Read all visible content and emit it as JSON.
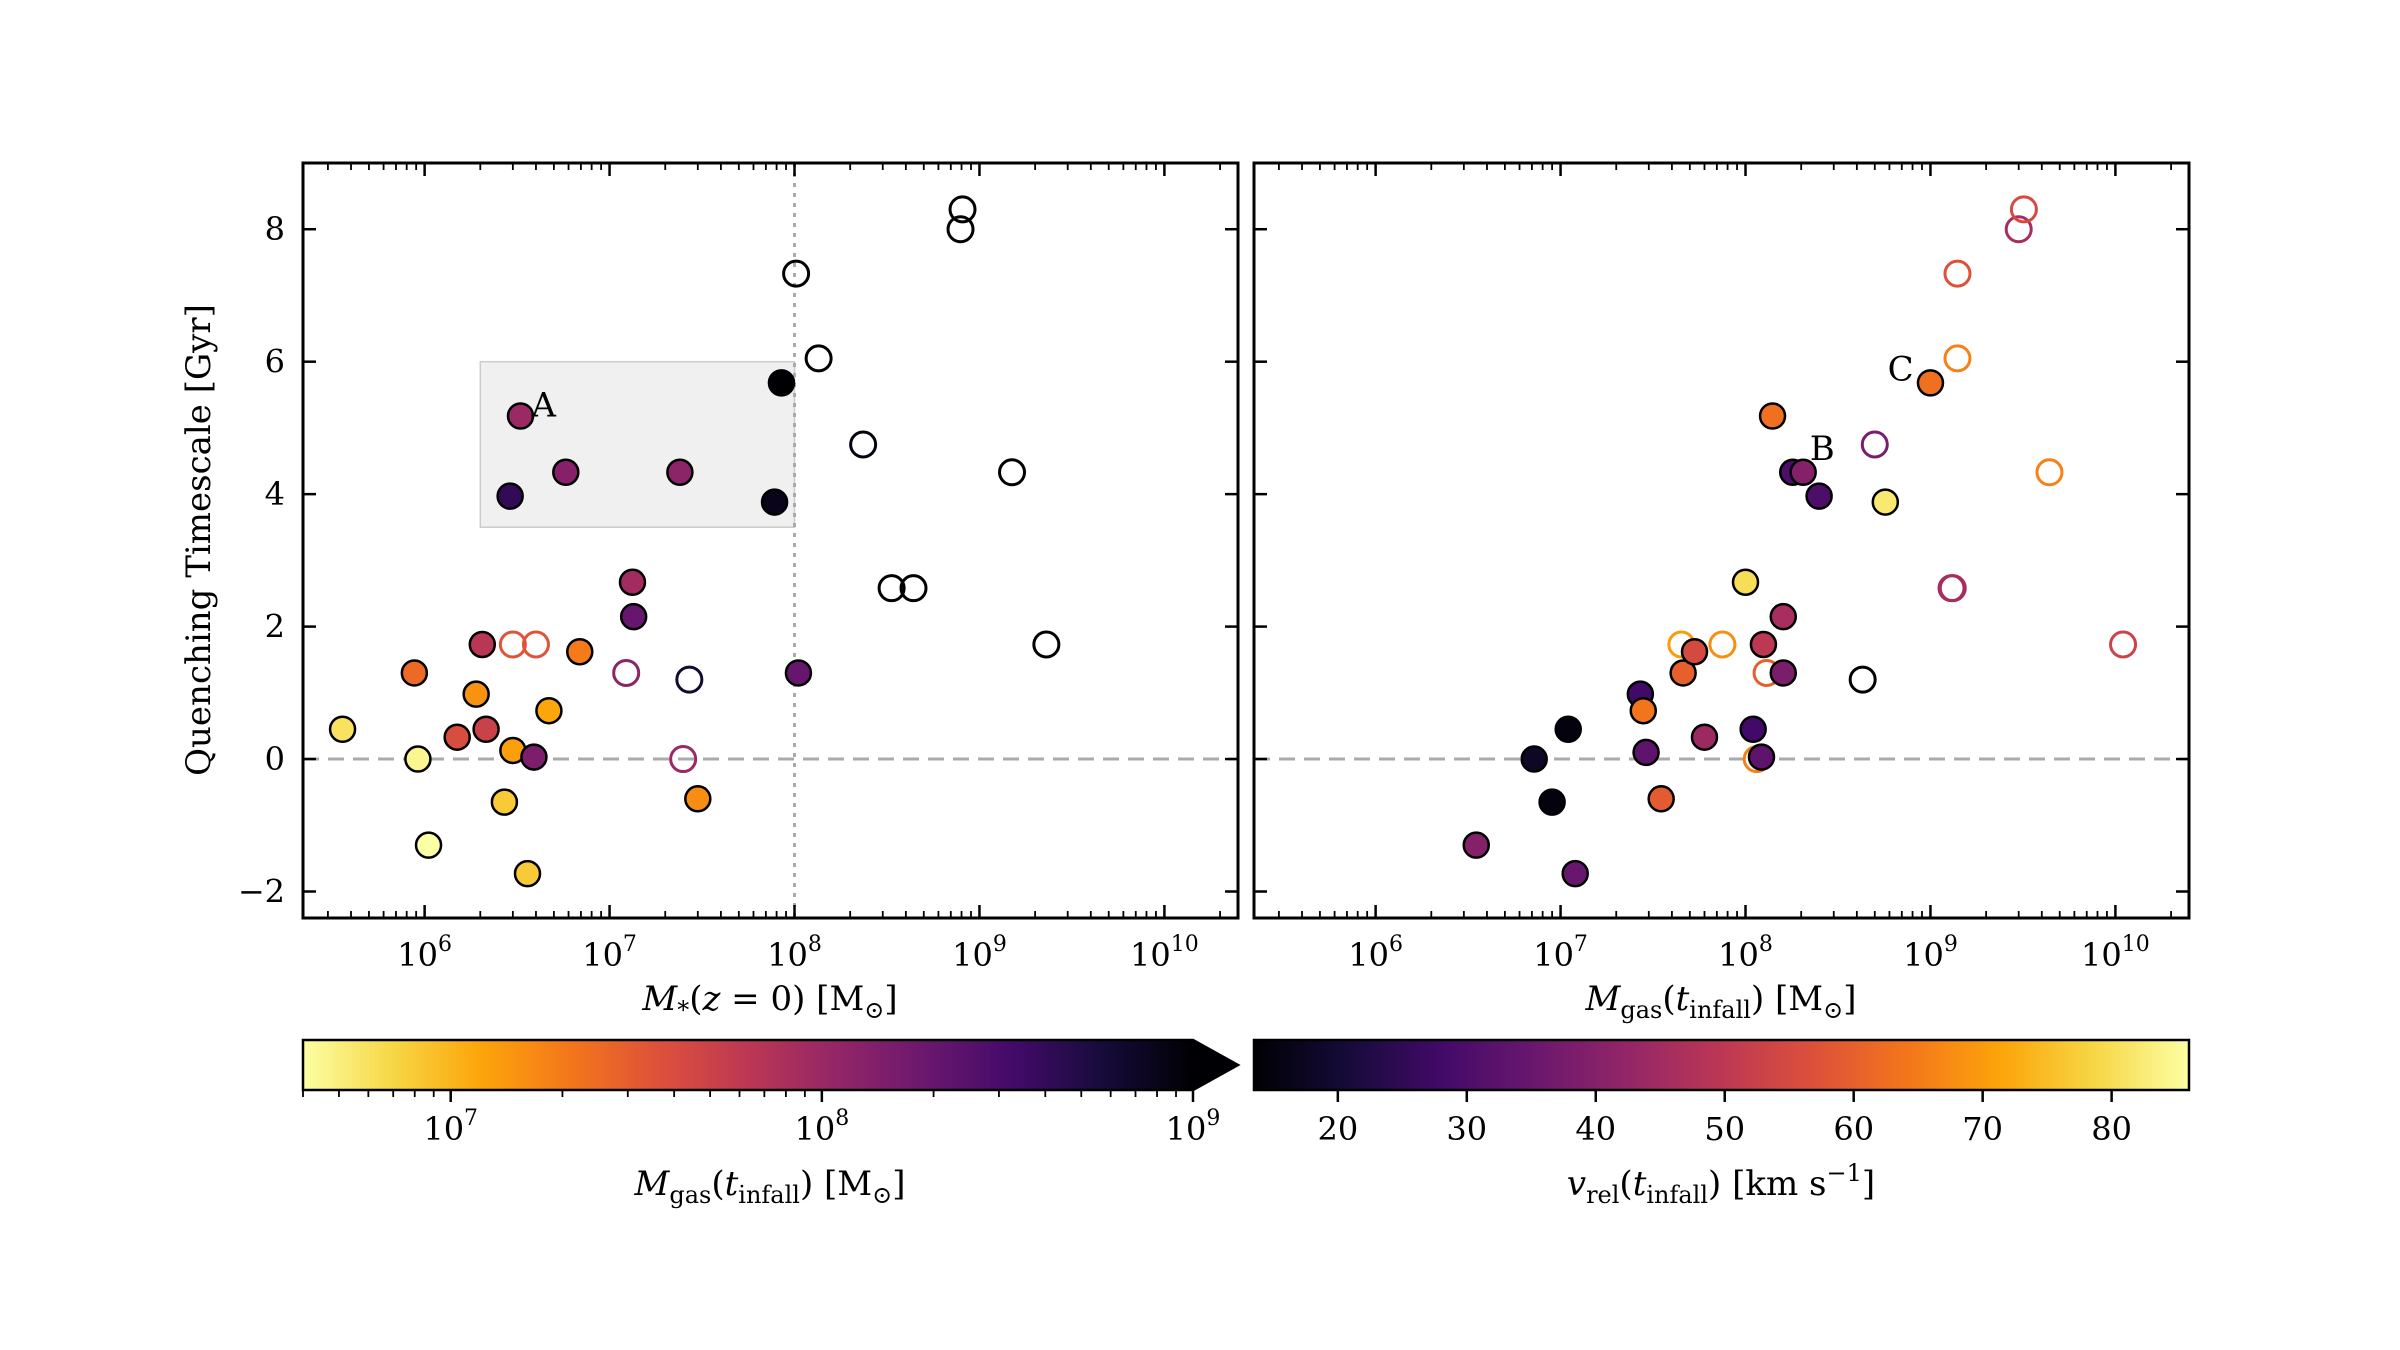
{
  "chart_data": [
    {
      "type": "scatter",
      "xlabel": "M*(z = 0) [M⊙]",
      "ylabel": "Quenching Timescale [Gyr]",
      "xscale": "log",
      "xlim": [
        220000.0,
        25000000000.0
      ],
      "ylim": [
        -2.4,
        9.0
      ],
      "x_ticks": [
        1000000.0,
        10000000.0,
        100000000.0,
        1000000000.0,
        10000000000.0
      ],
      "x_tick_labels": [
        "10^6",
        "10^7",
        "10^8",
        "10^9",
        "10^10"
      ],
      "y_ticks": [
        -2,
        0,
        2,
        4,
        6,
        8
      ],
      "y_tick_labels": [
        "−2",
        "0",
        "2",
        "4",
        "6",
        "8"
      ],
      "reference_lines": [
        {
          "orientation": "horizontal",
          "value": 0,
          "style": "dashed",
          "color": "#aaaaaa"
        },
        {
          "orientation": "vertical",
          "value": 100000000.0,
          "style": "dotted",
          "color": "#aaaaaa"
        }
      ],
      "shaded_region": {
        "x": [
          2000000.0,
          100000000.0
        ],
        "y": [
          3.5,
          6.0
        ],
        "color": "#f0f0f0"
      },
      "annotations": [
        {
          "text": "A",
          "x": 4400000.0,
          "y": 5.35
        }
      ],
      "color_by": "Mgas(tinfall)",
      "points": [
        {
          "x": 360000.0,
          "y": 0.45,
          "c": 6000000.0,
          "filled": true
        },
        {
          "x": 880000.0,
          "y": 1.3,
          "c": 25000000.0,
          "filled": true
        },
        {
          "x": 920000.0,
          "y": 0.0,
          "c": 4500000.0,
          "filled": true
        },
        {
          "x": 1050000.0,
          "y": -1.3,
          "c": 3800000.0,
          "filled": true
        },
        {
          "x": 1500000.0,
          "y": 0.33,
          "c": 40000000.0,
          "filled": true
        },
        {
          "x": 1900000.0,
          "y": 0.98,
          "c": 15000000.0,
          "filled": true
        },
        {
          "x": 2050000.0,
          "y": 1.73,
          "c": 65000000.0,
          "filled": true
        },
        {
          "x": 2150000.0,
          "y": 0.45,
          "c": 50000000.0,
          "filled": true
        },
        {
          "x": 2700000.0,
          "y": -0.65,
          "c": 8000000.0,
          "filled": true
        },
        {
          "x": 2900000.0,
          "y": 3.97,
          "c": 400000000.0,
          "filled": true
        },
        {
          "x": 3000000.0,
          "y": 0.13,
          "c": 13000000.0,
          "filled": true
        },
        {
          "x": 3000000.0,
          "y": 1.73,
          "c": 35000000.0,
          "filled": false
        },
        {
          "x": 3300000.0,
          "y": 5.18,
          "c": 100000000.0,
          "filled": true
        },
        {
          "x": 3600000.0,
          "y": -1.73,
          "c": 8000000.0,
          "filled": true
        },
        {
          "x": 3900000.0,
          "y": 0.03,
          "c": 150000000.0,
          "filled": true
        },
        {
          "x": 4000000.0,
          "y": 1.73,
          "c": 35000000.0,
          "filled": false
        },
        {
          "x": 4700000.0,
          "y": 0.73,
          "c": 12000000.0,
          "filled": true
        },
        {
          "x": 5800000.0,
          "y": 4.33,
          "c": 130000000.0,
          "filled": true
        },
        {
          "x": 6900000.0,
          "y": 1.62,
          "c": 20000000.0,
          "filled": true
        },
        {
          "x": 12300000.0,
          "y": 1.3,
          "c": 120000000.0,
          "filled": false
        },
        {
          "x": 13300000.0,
          "y": 2.67,
          "c": 90000000.0,
          "filled": true
        },
        {
          "x": 13500000.0,
          "y": 2.15,
          "c": 200000000.0,
          "filled": true
        },
        {
          "x": 24000000.0,
          "y": 4.33,
          "c": 120000000.0,
          "filled": true
        },
        {
          "x": 25000000.0,
          "y": 0.0,
          "c": 100000000.0,
          "filled": false
        },
        {
          "x": 27000000.0,
          "y": 1.2,
          "c": 600000000.0,
          "filled": false
        },
        {
          "x": 30000000.0,
          "y": -0.6,
          "c": 16000000.0,
          "filled": true
        },
        {
          "x": 78000000.0,
          "y": 3.88,
          "c": 800000000.0,
          "filled": true
        },
        {
          "x": 85000000.0,
          "y": 5.68,
          "c": 1000000000.0,
          "filled": true
        },
        {
          "x": 102000000.0,
          "y": 7.33,
          "c": null,
          "filled": false
        },
        {
          "x": 105000000.0,
          "y": 1.3,
          "c": 200000000.0,
          "filled": true
        },
        {
          "x": 135000000.0,
          "y": 6.05,
          "c": null,
          "filled": false
        },
        {
          "x": 235000000.0,
          "y": 4.75,
          "c": 900000000.0,
          "filled": false
        },
        {
          "x": 335000000.0,
          "y": 2.58,
          "c": null,
          "filled": false
        },
        {
          "x": 440000000.0,
          "y": 2.58,
          "c": null,
          "filled": false
        },
        {
          "x": 790000000.0,
          "y": 8.0,
          "c": null,
          "filled": false
        },
        {
          "x": 810000000.0,
          "y": 8.3,
          "c": null,
          "filled": false
        },
        {
          "x": 1500000000.0,
          "y": 4.33,
          "c": null,
          "filled": false
        },
        {
          "x": 2300000000.0,
          "y": 1.73,
          "c": null,
          "filled": false
        }
      ],
      "colorbar": {
        "label": "Mgas(tinfall) [M⊙]",
        "scale": "log",
        "range": [
          4000000.0,
          1000000000.0
        ],
        "ticks": [
          10000000.0,
          100000000.0,
          1000000000.0
        ],
        "tick_labels": [
          "10^7",
          "10^8",
          "10^9"
        ],
        "extend": "max",
        "colormap": "inferno_r"
      }
    },
    {
      "type": "scatter",
      "xlabel": "Mgas(tinfall) [M⊙]",
      "xscale": "log",
      "xlim": [
        220000.0,
        25000000000.0
      ],
      "ylim": [
        -2.4,
        9.0
      ],
      "x_ticks": [
        1000000.0,
        10000000.0,
        100000000.0,
        1000000000.0,
        10000000000.0
      ],
      "x_tick_labels": [
        "10^6",
        "10^7",
        "10^8",
        "10^9",
        "10^10"
      ],
      "reference_lines": [
        {
          "orientation": "horizontal",
          "value": 0,
          "style": "dashed",
          "color": "#aaaaaa"
        }
      ],
      "annotations": [
        {
          "text": "B",
          "x": 260000000.0,
          "y": 4.7
        },
        {
          "text": "C",
          "x": 690000000.0,
          "y": 5.9
        }
      ],
      "color_by": "vrel(tinfall)",
      "points": [
        {
          "x": 3500000.0,
          "y": -1.3,
          "c": 40,
          "filled": true
        },
        {
          "x": 7200000.0,
          "y": 0.0,
          "c": 18,
          "filled": true
        },
        {
          "x": 9000000.0,
          "y": -0.65,
          "c": 15,
          "filled": true
        },
        {
          "x": 11000000.0,
          "y": 0.45,
          "c": 15,
          "filled": true
        },
        {
          "x": 12000000.0,
          "y": -1.73,
          "c": 35,
          "filled": true
        },
        {
          "x": 27000000.0,
          "y": 0.98,
          "c": 28,
          "filled": true
        },
        {
          "x": 28000000.0,
          "y": 0.73,
          "c": 64,
          "filled": true
        },
        {
          "x": 29000000.0,
          "y": 0.1,
          "c": 33,
          "filled": true
        },
        {
          "x": 35000000.0,
          "y": -0.6,
          "c": 59,
          "filled": true
        },
        {
          "x": 45000000.0,
          "y": 1.73,
          "c": 70,
          "filled": false
        },
        {
          "x": 46000000.0,
          "y": 1.3,
          "c": 60,
          "filled": true
        },
        {
          "x": 53000000.0,
          "y": 1.62,
          "c": 55,
          "filled": true
        },
        {
          "x": 60000000.0,
          "y": 0.33,
          "c": 44,
          "filled": true
        },
        {
          "x": 75000000.0,
          "y": 1.73,
          "c": 68,
          "filled": false
        },
        {
          "x": 100000000.0,
          "y": 2.67,
          "c": 80,
          "filled": true
        },
        {
          "x": 110000000.0,
          "y": 0.45,
          "c": 28,
          "filled": true
        },
        {
          "x": 115000000.0,
          "y": 0.0,
          "c": 66,
          "filled": false
        },
        {
          "x": 122000000.0,
          "y": 0.03,
          "c": 33,
          "filled": true
        },
        {
          "x": 125000000.0,
          "y": 1.73,
          "c": 50,
          "filled": true
        },
        {
          "x": 130000000.0,
          "y": 1.3,
          "c": 60,
          "filled": false
        },
        {
          "x": 140000000.0,
          "y": 5.18,
          "c": 63,
          "filled": true
        },
        {
          "x": 160000000.0,
          "y": 2.15,
          "c": 46,
          "filled": true
        },
        {
          "x": 160000000.0,
          "y": 1.3,
          "c": 38,
          "filled": true
        },
        {
          "x": 180000000.0,
          "y": 4.33,
          "c": 30,
          "filled": true
        },
        {
          "x": 205000000.0,
          "y": 4.33,
          "c": 40,
          "filled": true
        },
        {
          "x": 250000000.0,
          "y": 3.97,
          "c": 30,
          "filled": true
        },
        {
          "x": 430000000.0,
          "y": 1.2,
          "c": null,
          "filled": false
        },
        {
          "x": 500000000.0,
          "y": 4.75,
          "c": 38,
          "filled": false
        },
        {
          "x": 570000000.0,
          "y": 3.88,
          "c": 82,
          "filled": true
        },
        {
          "x": 1000000000.0,
          "y": 5.68,
          "c": 63,
          "filled": true
        },
        {
          "x": 1300000000.0,
          "y": 2.58,
          "c": 45,
          "filled": false
        },
        {
          "x": 1320000000.0,
          "y": 2.58,
          "c": 46,
          "filled": false
        },
        {
          "x": 1400000000.0,
          "y": 7.33,
          "c": 57,
          "filled": false
        },
        {
          "x": 1400000000.0,
          "y": 6.05,
          "c": 66,
          "filled": false
        },
        {
          "x": 3000000000.0,
          "y": 8.0,
          "c": 46,
          "filled": false
        },
        {
          "x": 3200000000.0,
          "y": 8.3,
          "c": 55,
          "filled": false
        },
        {
          "x": 4400000000.0,
          "y": 4.33,
          "c": 66,
          "filled": false
        },
        {
          "x": 11000000000.0,
          "y": 1.73,
          "c": 53,
          "filled": false
        }
      ],
      "colorbar": {
        "label": "vrel(tinfall) [km s−1]",
        "scale": "linear",
        "range": [
          13.5,
          86
        ],
        "ticks": [
          20,
          30,
          40,
          50,
          60,
          70,
          80
        ],
        "tick_labels": [
          "20",
          "30",
          "40",
          "50",
          "60",
          "70",
          "80"
        ],
        "colormap": "inferno"
      }
    }
  ]
}
